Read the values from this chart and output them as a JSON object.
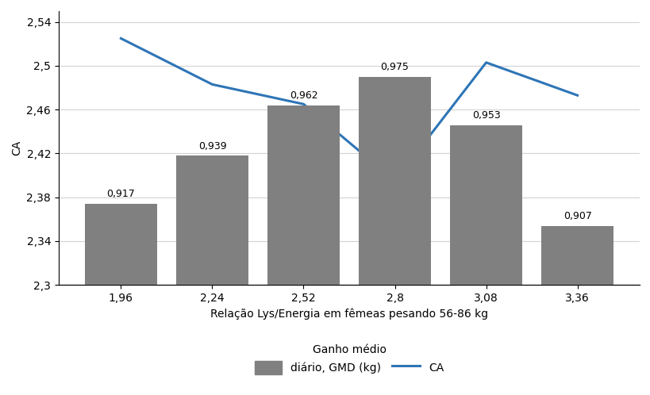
{
  "x_labels": [
    "1,96",
    "2,24",
    "2,52",
    "2,8",
    "3,08",
    "3,36"
  ],
  "x_values": [
    1.96,
    2.24,
    2.52,
    2.8,
    3.08,
    3.36
  ],
  "bar_values": [
    0.917,
    0.939,
    0.962,
    0.975,
    0.953,
    0.907
  ],
  "bar_labels": [
    "0,917",
    "0,939",
    "0,962",
    "0,975",
    "0,953",
    "0,907"
  ],
  "line_values": [
    2.525,
    2.483,
    2.465,
    2.395,
    2.503,
    2.473
  ],
  "bar_color": "#808080",
  "line_color": "#2E75B6",
  "bar_width": 0.22,
  "ylim_left": [
    2.3,
    2.55
  ],
  "ylim_right": [
    0.88,
    1.005
  ],
  "yticks_left": [
    2.3,
    2.34,
    2.38,
    2.42,
    2.46,
    2.5,
    2.54
  ],
  "ytick_labels_left": [
    "2,3",
    "2,34",
    "2,38",
    "2,42",
    "2,46",
    "2,5",
    "2,54"
  ],
  "ylabel": "CA",
  "xlabel": "Relação Lys/Energia em fêmeas pesando 56-86 kg",
  "legend_title": "Ganho médio",
  "legend_bar_label": "diário, GMD (kg)",
  "legend_line_label": "CA",
  "background_color": "#ffffff",
  "grid_color": "#d3d3d3",
  "label_fontsize": 10,
  "tick_fontsize": 10,
  "bar_label_fontsize": 9,
  "line_width": 2.2
}
